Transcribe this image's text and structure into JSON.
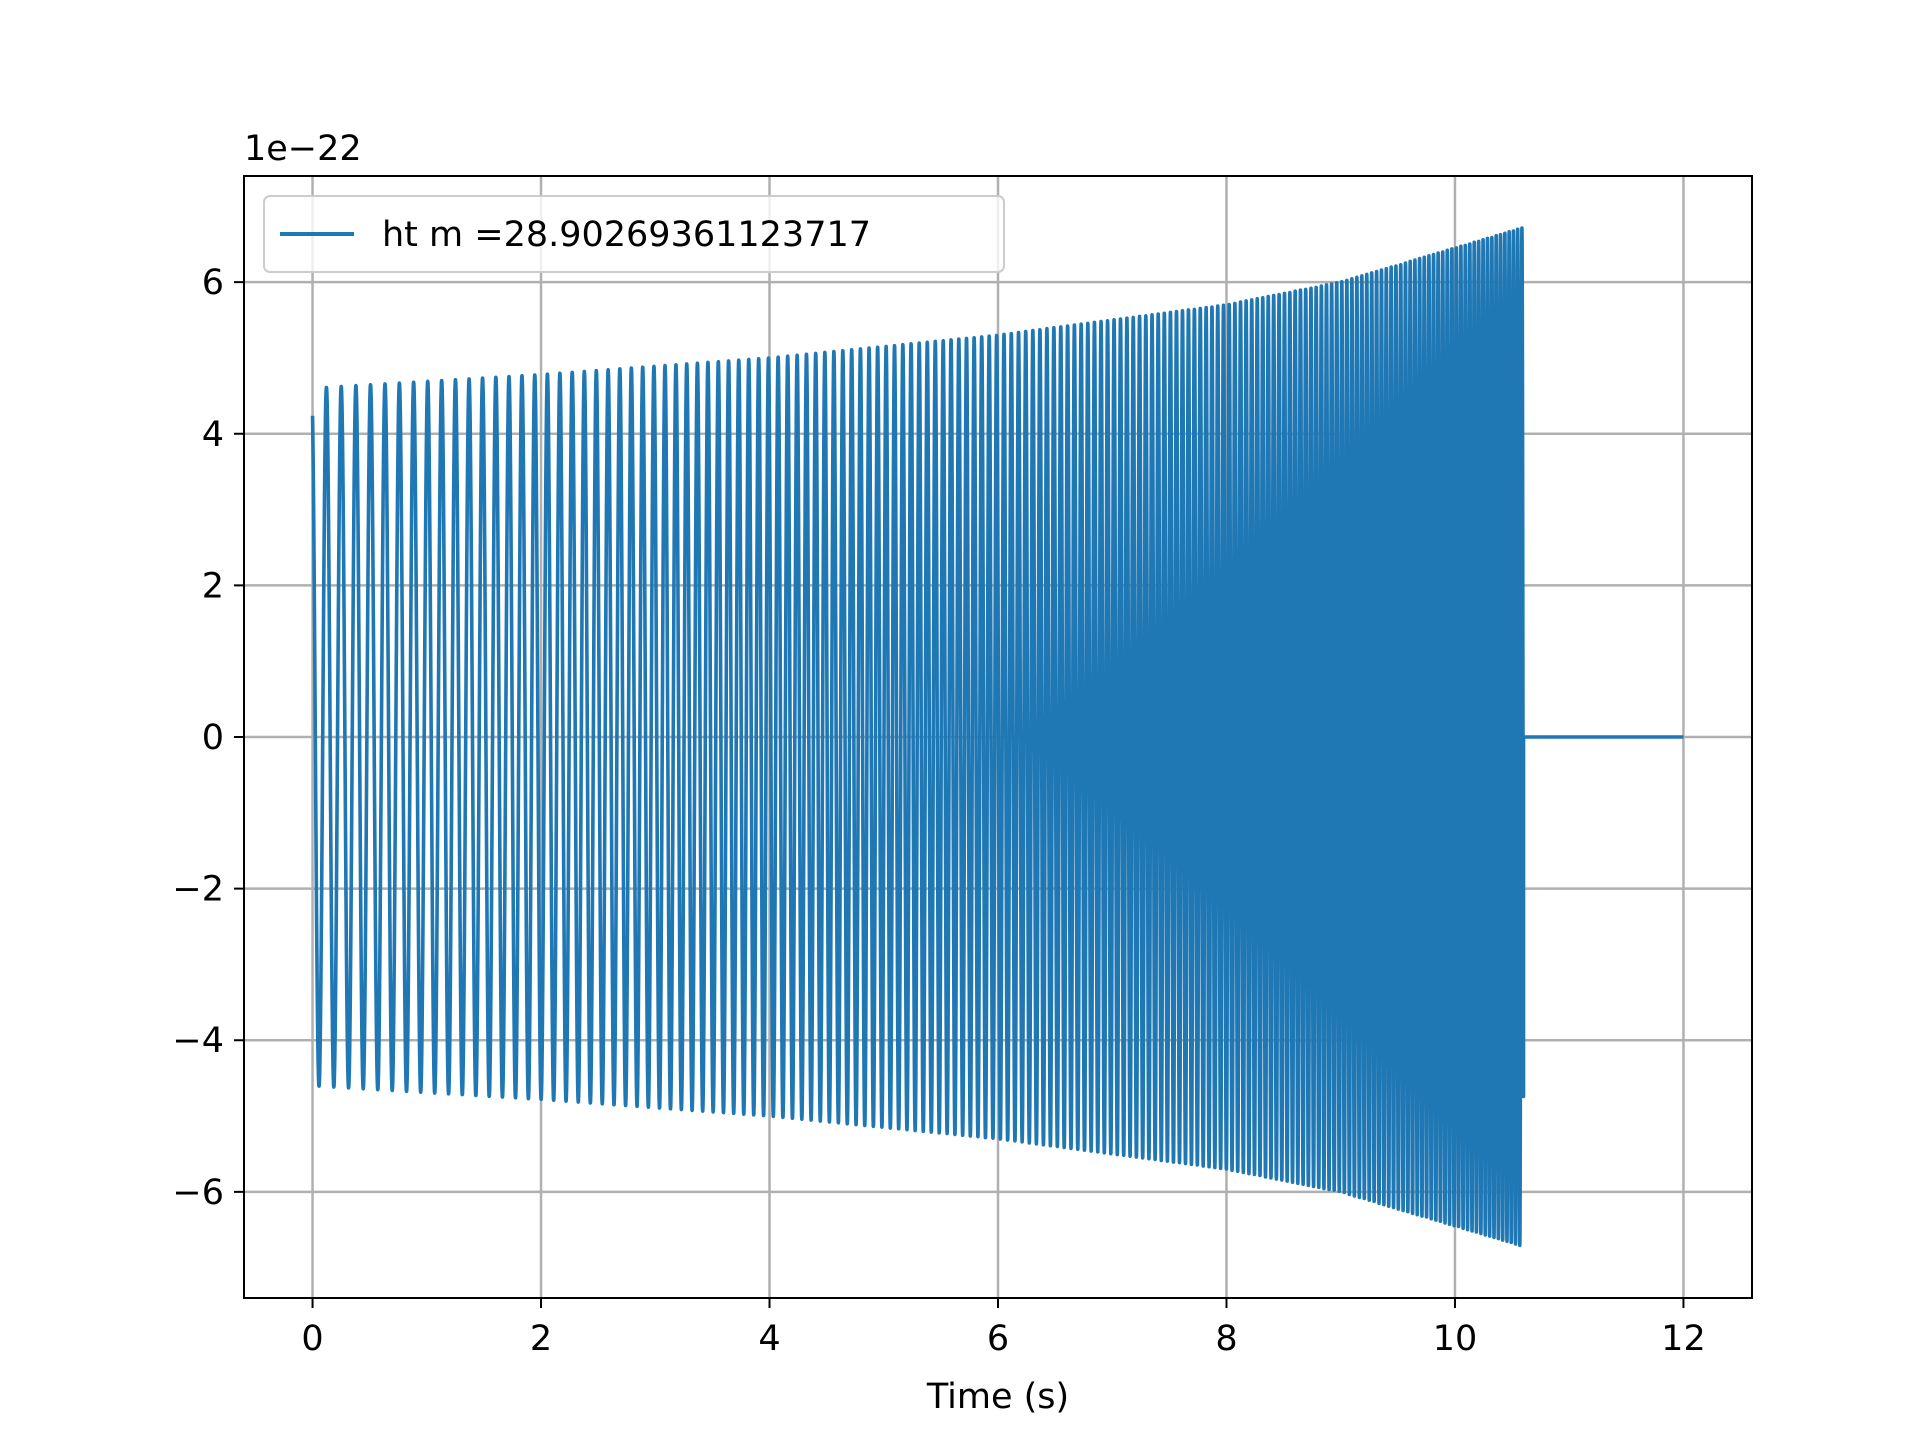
{
  "chart_data": {
    "type": "line",
    "title": "",
    "xlabel": "Time (s)",
    "ylabel": "",
    "y_scale_label": "1e−22",
    "xlim": [
      -0.6,
      12.6
    ],
    "ylim": [
      -7.4,
      7.4
    ],
    "xticks": [
      0,
      2,
      4,
      6,
      8,
      10,
      12
    ],
    "xtick_labels": [
      "0",
      "2",
      "4",
      "6",
      "8",
      "10",
      "12"
    ],
    "yticks": [
      -6,
      -4,
      -2,
      0,
      2,
      4,
      6
    ],
    "ytick_labels": [
      "−6",
      "−4",
      "−2",
      "0",
      "2",
      "4",
      "6"
    ],
    "grid": true,
    "legend_position": "top-left",
    "series": [
      {
        "name": "ht m =28.90269361123717",
        "color": "#1f77b4",
        "envelope": {
          "t": [
            0,
            2,
            4,
            6,
            8,
            9,
            10,
            10.6
          ],
          "amplitude": [
            4.6,
            4.78,
            5.0,
            5.3,
            5.7,
            6.0,
            6.45,
            6.72
          ]
        },
        "frequency_hz": {
          "start": 7.7,
          "end": 27
        },
        "signal_end_t": 10.6,
        "flat_until_t": 12.0,
        "flat_value": 0
      }
    ]
  }
}
